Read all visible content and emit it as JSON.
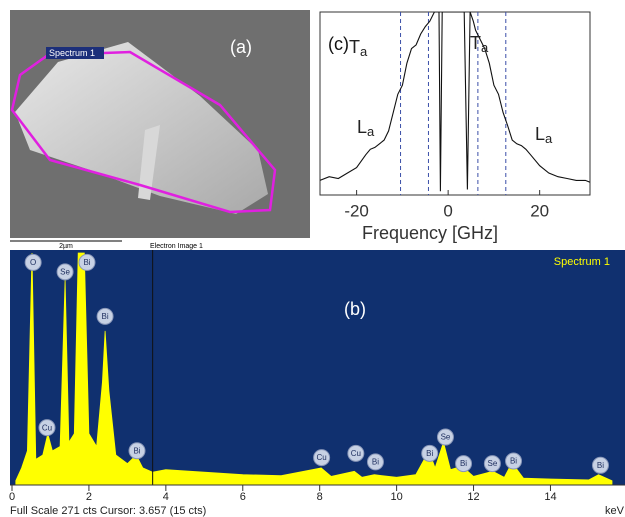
{
  "image": {
    "panel_label": "(a)",
    "spectrum_label": "Spectrum 1",
    "scale_bar": "2µm",
    "caption": "Electron Image 1"
  },
  "chart_data": [
    {
      "type": "line",
      "panel_label": "(c)",
      "xlabel": "Frequency [GHz]",
      "xlim": [
        -28,
        31
      ],
      "ylim": [
        0,
        100
      ],
      "xticks": [
        -20,
        0,
        20
      ],
      "annotations": [
        {
          "main": "T",
          "sub": "a"
        },
        {
          "main": "T",
          "sub": "a"
        },
        {
          "main": "L",
          "sub": "a"
        },
        {
          "main": "L",
          "sub": "a"
        }
      ],
      "dashed_lines": [
        -10.4,
        -4.3,
        6.5,
        12.6
      ],
      "dashed_color": "#3b4fa8",
      "x": [
        -28,
        -26,
        -24,
        -22,
        -20,
        -18,
        -17,
        -16,
        -15,
        -14,
        -13,
        -12,
        -11,
        -10,
        -9,
        -8,
        -7,
        -6,
        -5,
        -4,
        -3,
        -2.5,
        -2,
        -1.7,
        -1.3,
        0,
        1,
        2,
        3.5,
        4.2,
        4.8,
        5.5,
        6,
        7,
        8,
        9,
        10,
        11,
        12,
        13,
        14,
        15,
        16,
        17,
        18,
        20,
        22,
        24,
        26,
        28,
        30,
        31
      ],
      "series": [
        {
          "color": "#111111",
          "values": [
            8,
            10,
            9,
            12,
            15,
            22,
            25,
            26,
            28,
            30,
            35,
            45,
            55,
            60,
            72,
            80,
            82,
            88,
            92,
            95,
            100,
            100,
            100,
            2,
            100,
            100,
            100,
            100,
            100,
            3,
            100,
            95,
            90,
            85,
            80,
            72,
            60,
            55,
            45,
            38,
            30,
            28,
            27,
            25,
            22,
            16,
            12,
            10,
            9,
            8,
            8,
            7
          ]
        }
      ]
    },
    {
      "type": "area",
      "panel_label": "(b)",
      "background": "#10306f",
      "xlim": [
        0,
        15.6
      ],
      "ylim": [
        0,
        271
      ],
      "xticks": [
        0,
        2,
        4,
        6,
        8,
        10,
        12,
        14
      ],
      "cursor": 3.657,
      "footer": "Full Scale 271 cts Cursor: 3.657 (15 cts)",
      "x_unit": "keV",
      "x": [
        0.1,
        0.25,
        0.4,
        0.52,
        0.62,
        0.8,
        0.93,
        1.05,
        1.25,
        1.38,
        1.48,
        1.62,
        1.72,
        1.8,
        1.88,
        2.0,
        2.2,
        2.35,
        2.42,
        2.52,
        2.7,
        3.0,
        3.23,
        3.4,
        3.657,
        4,
        5,
        6,
        7,
        8.04,
        8.3,
        8.9,
        9.1,
        9.42,
        10,
        10.5,
        10.84,
        11.0,
        11.22,
        11.4,
        11.7,
        12,
        12.5,
        12.8,
        13.0,
        13.3,
        14,
        15,
        15.25,
        15.6
      ],
      "series": [
        {
          "name": "Spectrum 1",
          "color": "#ffff00",
          "values": [
            5,
            20,
            40,
            271,
            30,
            35,
            60,
            40,
            45,
            240,
            50,
            60,
            271,
            271,
            271,
            60,
            45,
            120,
            180,
            110,
            35,
            25,
            35,
            20,
            15,
            18,
            15,
            12,
            11,
            20,
            10,
            16,
            9,
            12,
            9,
            12,
            40,
            20,
            50,
            18,
            22,
            10,
            16,
            9,
            26,
            8,
            7,
            6,
            12,
            5
          ]
        }
      ],
      "peak_labels": [
        {
          "label": "O",
          "x": 0.55,
          "y": 260
        },
        {
          "label": "Se",
          "x": 1.38,
          "y": 249
        },
        {
          "label": "Bi",
          "x": 1.95,
          "y": 260
        },
        {
          "label": "Bi",
          "x": 2.42,
          "y": 197
        },
        {
          "label": "Cu",
          "x": 0.91,
          "y": 67
        },
        {
          "label": "Bi",
          "x": 3.25,
          "y": 40
        },
        {
          "label": "Cu",
          "x": 8.05,
          "y": 32
        },
        {
          "label": "Cu",
          "x": 8.94,
          "y": 37
        },
        {
          "label": "Bi",
          "x": 9.45,
          "y": 27
        },
        {
          "label": "Bi",
          "x": 10.86,
          "y": 37
        },
        {
          "label": "Se",
          "x": 11.27,
          "y": 56
        },
        {
          "label": "Bi",
          "x": 11.74,
          "y": 25
        },
        {
          "label": "Se",
          "x": 12.49,
          "y": 25
        },
        {
          "label": "Bi",
          "x": 13.04,
          "y": 28
        },
        {
          "label": "Bi",
          "x": 15.3,
          "y": 23
        }
      ]
    }
  ]
}
